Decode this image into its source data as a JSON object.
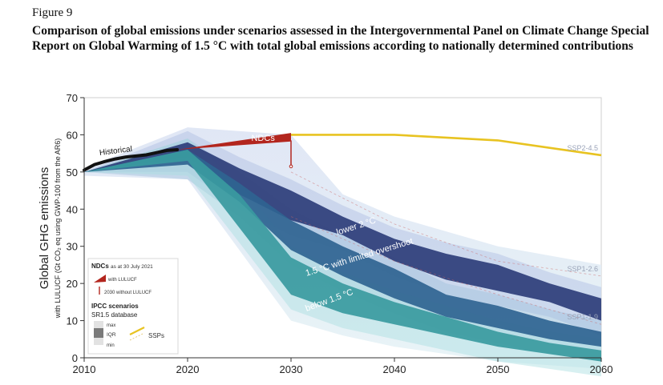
{
  "figure": {
    "label": "Figure 9",
    "title": "Comparison of global emissions under scenarios assessed in the Intergovernmental Panel on Climate Change Special Report on Global Warming of 1.5 °C with total global emissions according to nationally determined contributions"
  },
  "colors": {
    "historical": "#111111",
    "ndcs": "#b3261e",
    "ssp_line": "#e8c321",
    "below_1_5": "#3a9aa0",
    "limited_overshoot": "#2f6491",
    "lower_2c": "#2e3e7a",
    "envelope": "#c9d4ec"
  },
  "chart_data": {
    "type": "area",
    "ylabel_main": "Global GHG emissions",
    "ylabel_sub": "with LULUCF (Gt CO₂ eq using GWP-100 from the AR6)",
    "xlim": [
      2010,
      2060
    ],
    "ylim": [
      0,
      70
    ],
    "xticks": [
      "2010",
      "2020",
      "2030",
      "2040",
      "2050",
      "2060"
    ],
    "yticks": [
      "0",
      "10",
      "20",
      "30",
      "40",
      "50",
      "60",
      "70"
    ],
    "historical": {
      "label": "Historical",
      "x": [
        2010,
        2011,
        2012,
        2013,
        2014,
        2015,
        2016,
        2017,
        2018,
        2019
      ],
      "y": [
        50.5,
        52,
        52.8,
        53.5,
        54,
        54.3,
        54.6,
        55.2,
        55.8,
        56
      ]
    },
    "ndcs": {
      "label": "NDCs",
      "x_start": 2019,
      "y_start": 56,
      "x_end": 2030,
      "y_low": 58.2,
      "y_high": 60.5,
      "without_lulucf_2030": [
        51.5,
        58.5
      ]
    },
    "series": [
      {
        "name": "lower 2 °C",
        "x": [
          2010,
          2020,
          2025,
          2030,
          2035,
          2040,
          2045,
          2050,
          2055,
          2060
        ],
        "iqr_low": [
          50,
          54,
          44,
          37,
          33,
          26,
          21,
          18,
          15,
          10
        ],
        "iqr_high": [
          50,
          58,
          51,
          45,
          38,
          32,
          28,
          25,
          20,
          16
        ]
      },
      {
        "name": "1.5 °C with limited overshoot",
        "x": [
          2010,
          2020,
          2025,
          2030,
          2035,
          2040,
          2045,
          2050,
          2055,
          2060
        ],
        "iqr_low": [
          50,
          52,
          42,
          29,
          22,
          16,
          11,
          8,
          5,
          3
        ],
        "iqr_high": [
          50,
          56,
          47,
          37,
          30,
          24,
          17,
          14,
          10,
          7
        ]
      },
      {
        "name": "below 1.5 °C",
        "x": [
          2010,
          2020,
          2025,
          2030,
          2035,
          2040,
          2045,
          2050,
          2055,
          2060
        ],
        "iqr_low": [
          50,
          53,
          35,
          17,
          12,
          9,
          6,
          3,
          1,
          -1
        ],
        "iqr_high": [
          50,
          56,
          44,
          27,
          20,
          15,
          11,
          7,
          4,
          2
        ]
      }
    ],
    "envelope": {
      "x": [
        2010,
        2020,
        2030,
        2035,
        2040,
        2050,
        2060
      ],
      "max": [
        51,
        62,
        60,
        44,
        38,
        30,
        25
      ],
      "min": [
        49,
        48,
        10,
        6,
        3,
        -1,
        -3
      ]
    },
    "ssps": [
      {
        "name": "SSP2-4.5",
        "x": [
          2030,
          2040,
          2050,
          2060
        ],
        "y": [
          60,
          60,
          58.5,
          54.5
        ]
      },
      {
        "name": "SSP1-2.6",
        "x": [
          2030,
          2040,
          2050,
          2060
        ],
        "y": [
          50,
          36,
          26,
          22
        ]
      },
      {
        "name": "SSP1-1.9",
        "x": [
          2030,
          2040,
          2050,
          2060
        ],
        "y": [
          38,
          26,
          17,
          9
        ]
      }
    ],
    "legend": {
      "ndcs_title": "NDCs",
      "ndcs_date": "as at 30 July 2021",
      "with_lulucf": "with LULUCF",
      "without_lulucf": "2030 without LULUCF",
      "ipcc_title": "IPCC scenarios",
      "database": "SR1.5 database",
      "max": "max",
      "iqr": "IQR",
      "min": "min",
      "ssps": "SSPs",
      "position": "bottom-left"
    }
  }
}
